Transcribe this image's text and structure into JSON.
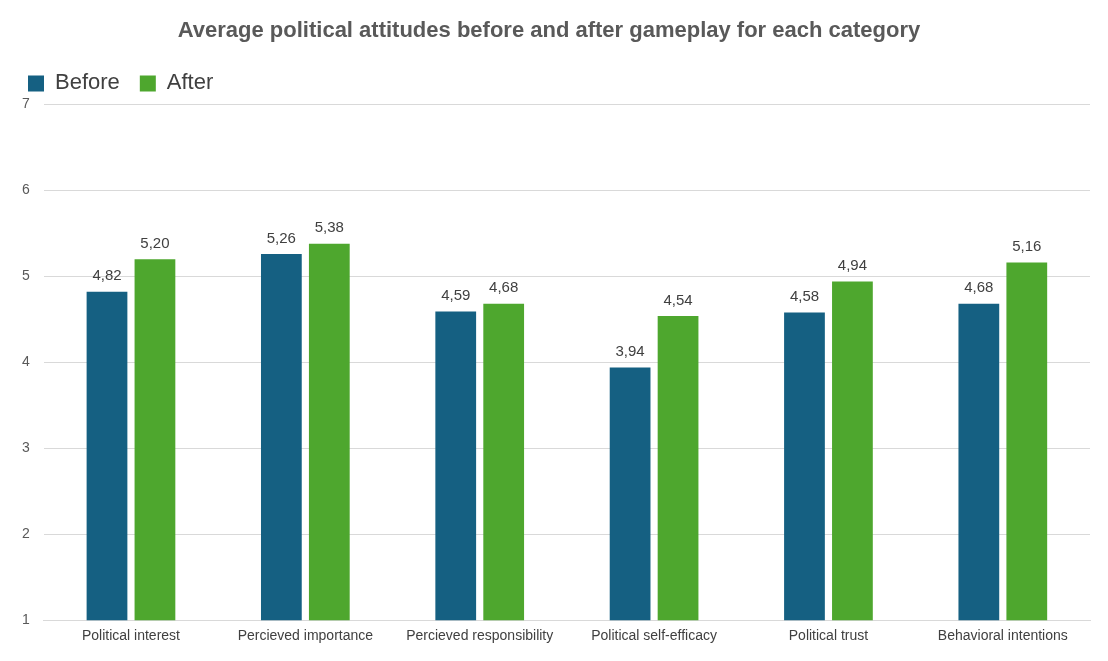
{
  "chart_data": {
    "type": "bar",
    "title": "Average political attitudes before and after gameplay for each category",
    "categories": [
      "Political interest",
      "Percieved importance",
      "Percieved responsibility",
      "Political self-efficacy",
      "Political trust",
      "Behavioral intentions"
    ],
    "series": [
      {
        "name": "Before",
        "color": "#156082",
        "values": [
          4.82,
          5.26,
          4.59,
          3.94,
          4.58,
          4.68
        ],
        "value_labels": [
          "4,82",
          "5,26",
          "4,59",
          "3,94",
          "4,58",
          "4,68"
        ]
      },
      {
        "name": "After",
        "color": "#4ea72e",
        "values": [
          5.2,
          5.38,
          4.68,
          4.54,
          4.94,
          5.16
        ],
        "value_labels": [
          "5,20",
          "5,38",
          "4,68",
          "4,54",
          "4,94",
          "5,16"
        ]
      }
    ],
    "ylim": [
      1,
      7
    ],
    "yticks": [
      1,
      2,
      3,
      4,
      5,
      6,
      7
    ],
    "grid": "y",
    "legend": "top left"
  }
}
